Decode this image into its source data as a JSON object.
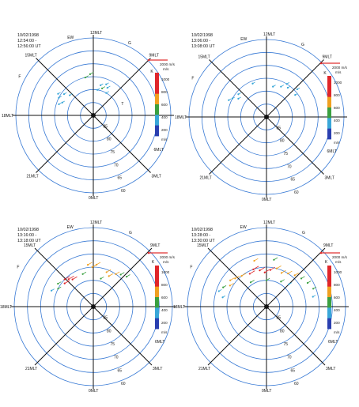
{
  "chart_data": [
    {
      "type": "scatter",
      "projection": "polar MLT vs magnetic latitude",
      "title_lines": [
        "10/02/1998",
        "12:54:00 -",
        "12:56:00 UT"
      ],
      "lat_rings": [
        85,
        80,
        75,
        70,
        65,
        60
      ],
      "mlt_labels": {
        "noon": "12MLT",
        "dusk": "18MLT",
        "dawn": "6MLT",
        "midnight": "0MLT",
        "nw": "15MLT",
        "ne": "9MLT",
        "sw": "21MLT",
        "se": "3MLT"
      },
      "station_letters": [
        {
          "text": "EW",
          "color": "#2a9d3a",
          "mlt": 13.1,
          "lat": 59
        },
        {
          "text": "G",
          "color": "#2a9d3a",
          "mlt": 10.2,
          "lat": 59
        },
        {
          "text": "F",
          "color": "#2a9d3a",
          "mlt": 16.2,
          "lat": 58
        },
        {
          "text": "T",
          "color": "#2a9d3a",
          "mlt": 7.3,
          "lat": 78
        },
        {
          "text": "K",
          "color": "#2a9d3a",
          "mlt": 8.4,
          "lat": 62
        }
      ],
      "color_scale": {
        "ticks": [
          1000,
          800,
          600,
          400,
          200
        ],
        "unit": "m/s",
        "range": [
          0,
          1000
        ]
      },
      "reference_vector": {
        "label": "2000 m/s",
        "color": "#e03030"
      },
      "vectors": [
        {
          "mlt": 15.6,
          "lat": 76,
          "speed": 300
        },
        {
          "mlt": 15.9,
          "lat": 74,
          "speed": 280
        },
        {
          "mlt": 16.2,
          "lat": 75,
          "speed": 320
        },
        {
          "mlt": 16.5,
          "lat": 77,
          "speed": 250
        },
        {
          "mlt": 16.8,
          "lat": 76,
          "speed": 300
        },
        {
          "mlt": 15.3,
          "lat": 78,
          "speed": 350
        },
        {
          "mlt": 10.2,
          "lat": 78,
          "speed": 350
        },
        {
          "mlt": 10.5,
          "lat": 77,
          "speed": 300
        },
        {
          "mlt": 10.8,
          "lat": 79,
          "speed": 400
        },
        {
          "mlt": 11.1,
          "lat": 78,
          "speed": 280
        },
        {
          "mlt": 10.0,
          "lat": 80,
          "speed": 320
        },
        {
          "mlt": 11.4,
          "lat": 80,
          "speed": 300
        },
        {
          "mlt": 12.3,
          "lat": 74,
          "speed": 500
        },
        {
          "mlt": 12.8,
          "lat": 75,
          "speed": 450
        }
      ]
    },
    {
      "type": "scatter",
      "projection": "polar MLT vs magnetic latitude",
      "title_lines": [
        "10/02/1998",
        "13:06:00 -",
        "13:08:00 UT"
      ],
      "lat_rings": [
        85,
        80,
        75,
        70,
        65,
        60
      ],
      "mlt_labels": {
        "noon": "12MLT",
        "dusk": "18MLT",
        "dawn": "6MLT",
        "midnight": "0MLT",
        "nw": "15MLT",
        "ne": "9MLT",
        "sw": "21MLT",
        "se": "3MLT"
      },
      "station_letters": [
        {
          "text": "EW",
          "color": "#2a9d3a",
          "mlt": 13.1,
          "lat": 59
        },
        {
          "text": "G",
          "color": "#2a9d3a",
          "mlt": 10.2,
          "lat": 59
        },
        {
          "text": "F",
          "color": "#2a9d3a",
          "mlt": 16.2,
          "lat": 58
        },
        {
          "text": "K",
          "color": "#2a9d3a",
          "mlt": 8.4,
          "lat": 62
        }
      ],
      "color_scale": {
        "ticks": [
          1000,
          800,
          600,
          400,
          200
        ],
        "unit": "m/s",
        "range": [
          0,
          1000
        ]
      },
      "reference_vector": {
        "label": "2000 m/s",
        "color": "#e03030"
      },
      "vectors": [
        {
          "mlt": 15.4,
          "lat": 76,
          "speed": 280
        },
        {
          "mlt": 15.8,
          "lat": 77,
          "speed": 300
        },
        {
          "mlt": 16.1,
          "lat": 75,
          "speed": 250
        },
        {
          "mlt": 16.4,
          "lat": 74,
          "speed": 260
        },
        {
          "mlt": 9.6,
          "lat": 76,
          "speed": 300
        },
        {
          "mlt": 9.9,
          "lat": 75,
          "speed": 280
        },
        {
          "mlt": 10.3,
          "lat": 77,
          "speed": 350
        },
        {
          "mlt": 8.8,
          "lat": 74,
          "speed": 300
        },
        {
          "mlt": 8.5,
          "lat": 76,
          "speed": 260
        },
        {
          "mlt": 11.2,
          "lat": 78,
          "speed": 320
        },
        {
          "mlt": 13.5,
          "lat": 76,
          "speed": 250
        }
      ]
    },
    {
      "type": "scatter",
      "projection": "polar MLT vs magnetic latitude",
      "title_lines": [
        "10/02/1998",
        "13:16:00 -",
        "13:18:00 UT"
      ],
      "lat_rings": [
        85,
        80,
        75,
        70,
        65,
        60
      ],
      "mlt_labels": {
        "noon": "12MLT",
        "dusk": "18MLT",
        "dawn": "6MLT",
        "midnight": "0MLT",
        "nw": "15MLT",
        "ne": "9MLT",
        "sw": "21MLT",
        "se": "3MLT"
      },
      "station_letters": [
        {
          "text": "EW",
          "color": "#2a9d3a",
          "mlt": 13.1,
          "lat": 59
        },
        {
          "text": "G",
          "color": "#2a9d3a",
          "mlt": 10.2,
          "lat": 59
        },
        {
          "text": "F",
          "color": "#2a9d3a",
          "mlt": 16.2,
          "lat": 58
        },
        {
          "text": "K",
          "color": "#2a9d3a",
          "mlt": 8.4,
          "lat": 62
        }
      ],
      "color_scale": {
        "ticks": [
          1000,
          800,
          600,
          400,
          200
        ],
        "unit": "m/s",
        "range": [
          0,
          1000
        ]
      },
      "reference_vector": {
        "label": "2000 m/s",
        "color": "#e03030"
      },
      "vectors": [
        {
          "mlt": 14.8,
          "lat": 76,
          "speed": 950
        },
        {
          "mlt": 15.1,
          "lat": 75,
          "speed": 900
        },
        {
          "mlt": 15.4,
          "lat": 76,
          "speed": 850
        },
        {
          "mlt": 14.5,
          "lat": 77,
          "speed": 800
        },
        {
          "mlt": 15.8,
          "lat": 74,
          "speed": 450
        },
        {
          "mlt": 16.2,
          "lat": 75,
          "speed": 400
        },
        {
          "mlt": 16.6,
          "lat": 73,
          "speed": 350
        },
        {
          "mlt": 12.5,
          "lat": 74,
          "speed": 700
        },
        {
          "mlt": 12.1,
          "lat": 75,
          "speed": 650
        },
        {
          "mlt": 11.7,
          "lat": 74,
          "speed": 600
        },
        {
          "mlt": 10.6,
          "lat": 76,
          "speed": 700
        },
        {
          "mlt": 10.2,
          "lat": 77,
          "speed": 650
        },
        {
          "mlt": 9.7,
          "lat": 75,
          "speed": 600
        },
        {
          "mlt": 9.3,
          "lat": 74,
          "speed": 550
        },
        {
          "mlt": 8.8,
          "lat": 73,
          "speed": 500
        },
        {
          "mlt": 11.0,
          "lat": 79,
          "speed": 400
        },
        {
          "mlt": 13.2,
          "lat": 77,
          "speed": 500
        }
      ]
    },
    {
      "type": "scatter",
      "projection": "polar MLT vs magnetic latitude",
      "title_lines": [
        "10/02/1998",
        "13:28:00 -",
        "13:30:00 UT"
      ],
      "lat_rings": [
        85,
        80,
        75,
        70,
        65,
        60
      ],
      "mlt_labels": {
        "noon": "12MLT",
        "dusk": "18MLT",
        "dawn": "6MLT",
        "midnight": "0MLT",
        "nw": "15MLT",
        "ne": "9MLT",
        "sw": "21MLT",
        "se": "3MLT"
      },
      "station_letters": [
        {
          "text": "EW",
          "color": "#2a9d3a",
          "mlt": 13.1,
          "lat": 59
        },
        {
          "text": "G",
          "color": "#2a9d3a",
          "mlt": 10.2,
          "lat": 59
        },
        {
          "text": "F",
          "color": "#2a9d3a",
          "mlt": 16.2,
          "lat": 58
        },
        {
          "text": "K",
          "color": "#2a9d3a",
          "mlt": 8.4,
          "lat": 62
        }
      ],
      "color_scale": {
        "ticks": [
          1000,
          800,
          600,
          400,
          200
        ],
        "unit": "m/s",
        "range": [
          0,
          1000
        ]
      },
      "reference_vector": {
        "label": "2000 m/s",
        "color": "#e03030"
      },
      "vectors": [
        {
          "mlt": 15.2,
          "lat": 74,
          "speed": 700
        },
        {
          "mlt": 15.6,
          "lat": 73,
          "speed": 650
        },
        {
          "mlt": 16.0,
          "lat": 74,
          "speed": 600
        },
        {
          "mlt": 16.4,
          "lat": 72,
          "speed": 400
        },
        {
          "mlt": 16.8,
          "lat": 71,
          "speed": 350
        },
        {
          "mlt": 14.6,
          "lat": 75,
          "speed": 750
        },
        {
          "mlt": 13.8,
          "lat": 76,
          "speed": 900
        },
        {
          "mlt": 13.3,
          "lat": 75,
          "speed": 950
        },
        {
          "mlt": 12.7,
          "lat": 76,
          "speed": 900
        },
        {
          "mlt": 12.2,
          "lat": 77,
          "speed": 850
        },
        {
          "mlt": 11.6,
          "lat": 76,
          "speed": 800
        },
        {
          "mlt": 11.0,
          "lat": 75,
          "speed": 750
        },
        {
          "mlt": 10.4,
          "lat": 76,
          "speed": 700
        },
        {
          "mlt": 9.8,
          "lat": 75,
          "speed": 650
        },
        {
          "mlt": 9.2,
          "lat": 74,
          "speed": 600
        },
        {
          "mlt": 8.6,
          "lat": 73,
          "speed": 500
        },
        {
          "mlt": 8.0,
          "lat": 72,
          "speed": 450
        },
        {
          "mlt": 7.4,
          "lat": 71,
          "speed": 400
        },
        {
          "mlt": 6.8,
          "lat": 72,
          "speed": 300
        },
        {
          "mlt": 10.0,
          "lat": 79,
          "speed": 500
        },
        {
          "mlt": 12.0,
          "lat": 80,
          "speed": 450
        },
        {
          "mlt": 14.2,
          "lat": 79,
          "speed": 550
        },
        {
          "mlt": 9.0,
          "lat": 78,
          "speed": 350
        },
        {
          "mlt": 17.2,
          "lat": 73,
          "speed": 300
        },
        {
          "mlt": 13.0,
          "lat": 72,
          "speed": 600
        },
        {
          "mlt": 11.4,
          "lat": 72,
          "speed": 550
        }
      ]
    }
  ]
}
